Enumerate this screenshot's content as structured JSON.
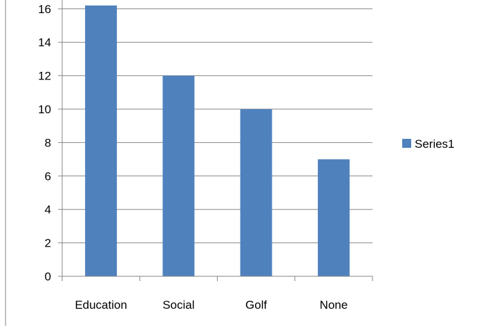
{
  "chart_data": {
    "type": "bar",
    "categories": [
      "Education",
      "Social",
      "Golf",
      "None"
    ],
    "series": [
      {
        "name": "Series1",
        "values": [
          16.2,
          12,
          10,
          7
        ],
        "color": "#4F81BD"
      }
    ],
    "ylim": [
      0,
      16
    ],
    "yticks": [
      0,
      2,
      4,
      6,
      8,
      10,
      12,
      14,
      16
    ],
    "title": "",
    "xlabel": "",
    "ylabel": "",
    "grid": true,
    "legend_position": "right"
  }
}
